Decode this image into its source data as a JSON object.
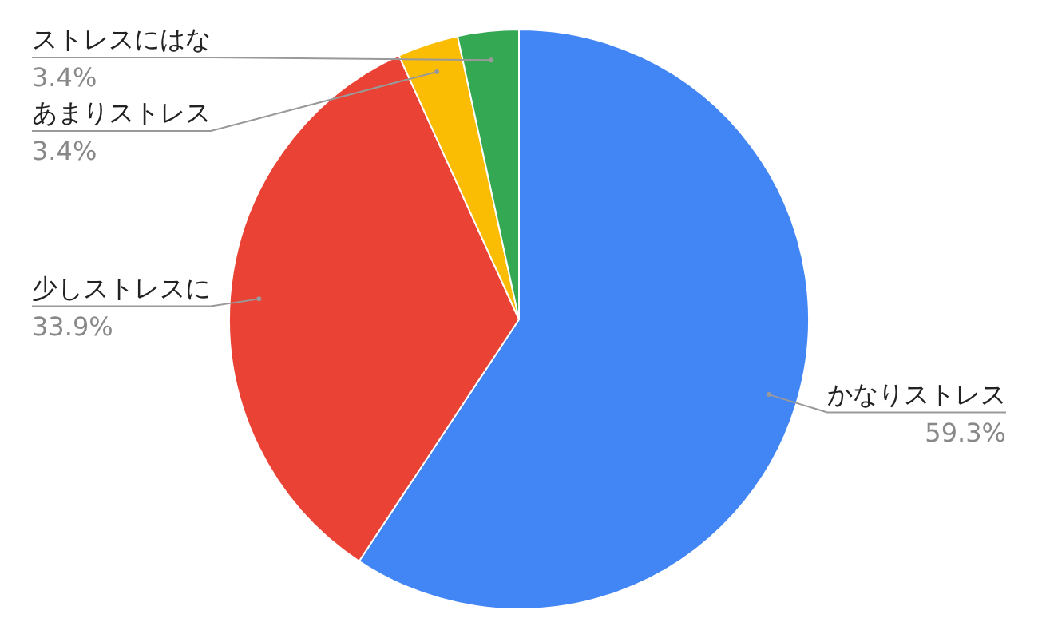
{
  "chart_data": {
    "type": "pie",
    "categories": [
      "かなりストレス",
      "少しストレスに",
      "あまりストレス",
      "ストレスにはな"
    ],
    "values": [
      59.3,
      33.9,
      3.4,
      3.4
    ],
    "colors": [
      "#4285f4",
      "#ea4335",
      "#fbbc04",
      "#34a853"
    ],
    "value_labels": [
      "59.3%",
      "33.9%",
      "3.4%",
      "3.4%"
    ]
  }
}
